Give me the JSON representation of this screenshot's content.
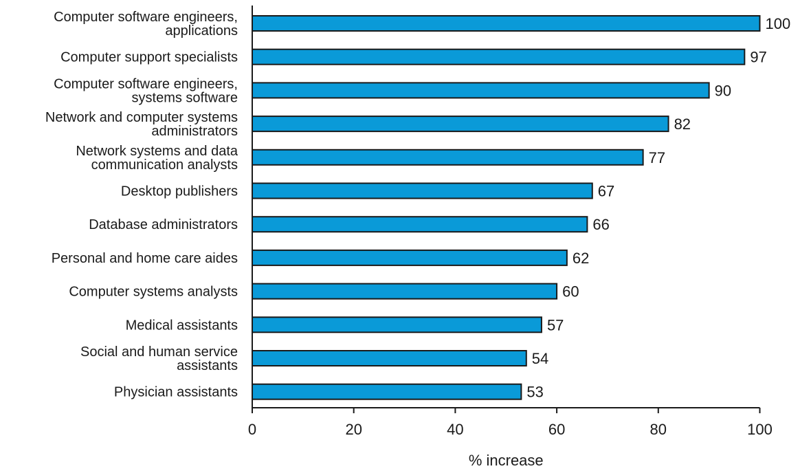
{
  "chart_data": {
    "type": "bar",
    "orientation": "horizontal",
    "categories": [
      [
        "Computer software engineers,",
        "applications"
      ],
      [
        "Computer support specialists"
      ],
      [
        "Computer software engineers,",
        "systems software"
      ],
      [
        "Network and computer systems",
        "administrators"
      ],
      [
        "Network systems and data",
        "communication analysts"
      ],
      [
        "Desktop publishers"
      ],
      [
        "Database administrators"
      ],
      [
        "Personal and home care aides"
      ],
      [
        "Computer systems analysts"
      ],
      [
        "Medical assistants"
      ],
      [
        "Social and human service",
        "assistants"
      ],
      [
        "Physician assistants"
      ]
    ],
    "values": [
      100,
      97,
      90,
      82,
      77,
      67,
      66,
      62,
      60,
      57,
      54,
      53
    ],
    "xlabel": "% increase",
    "ylabel": "",
    "xlim": [
      0,
      100
    ],
    "xticks": [
      0,
      20,
      40,
      60,
      80,
      100
    ],
    "grid": false,
    "bar_color": "#0a9ad8",
    "edge_color": "#1a1a1a"
  }
}
